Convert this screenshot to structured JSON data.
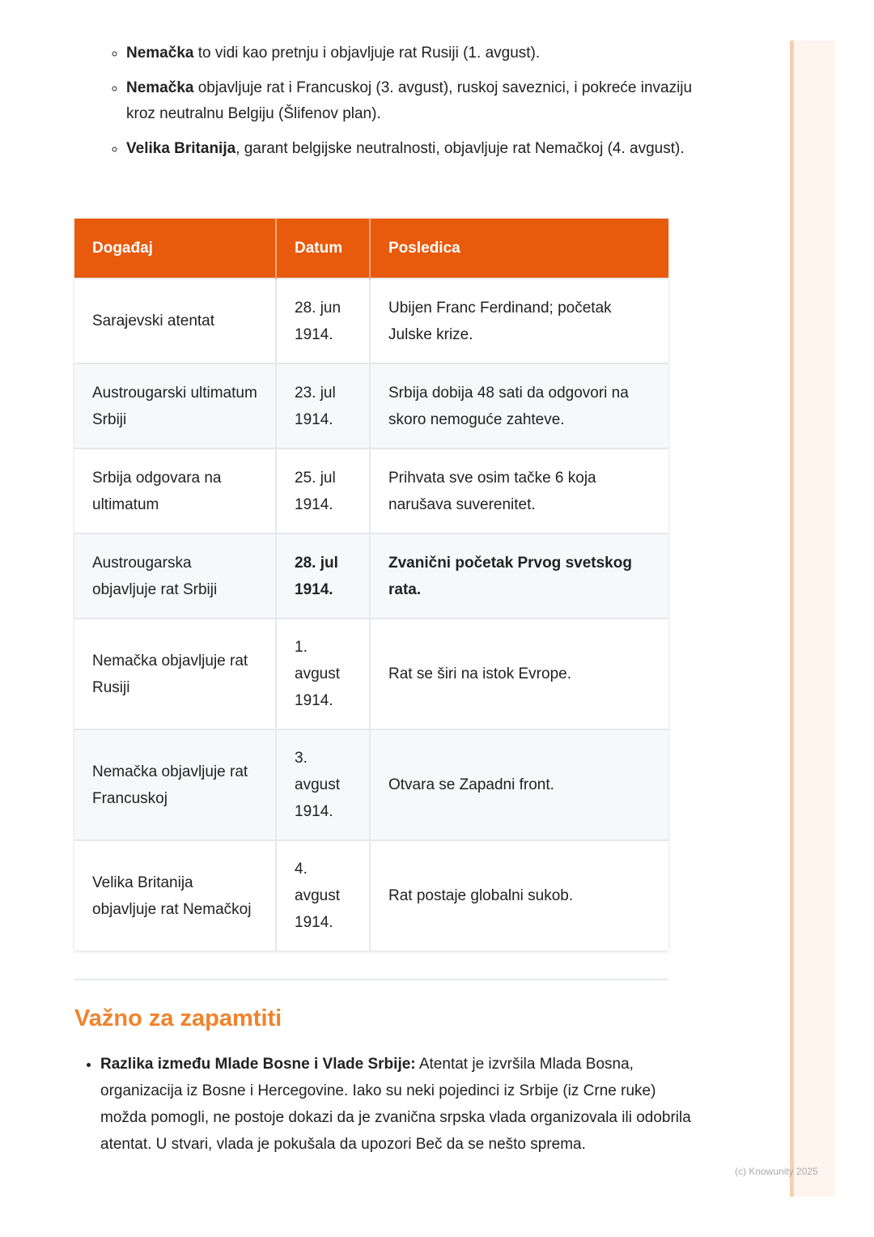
{
  "bullets": [
    {
      "bold": "Nemačka",
      "text": " to vidi kao pretnju i objavljuje rat Rusiji (1. avgust)."
    },
    {
      "bold": "Nemačka",
      "text": " objavljuje rat i Francuskoj (3. avgust), ruskoj saveznici, i pokreće invaziju kroz neutralnu Belgiju (Šlifenov plan)."
    },
    {
      "bold": "Velika Britanija",
      "text": ", garant belgijske neutralnosti, objavljuje rat Nemačkoj (4. avgust)."
    }
  ],
  "table": {
    "headers": [
      "Događaj",
      "Datum",
      "Posledica"
    ],
    "rows": [
      [
        "Sarajevski atentat",
        "28. jun 1914.",
        "Ubijen Franc Ferdinand; početak Julske krize."
      ],
      [
        "Austrougarski ultimatum Srbiji",
        "23. jul 1914.",
        "Srbija dobija 48 sati da odgovori na skoro nemoguće zahteve."
      ],
      [
        "Srbija odgovara na ultimatum",
        "25. jul 1914.",
        "Prihvata sve osim tačke 6 koja narušava suverenitet."
      ],
      [
        "Austrougarska objavljuje rat Srbiji",
        "28. jul 1914.",
        "Zvanični početak Prvog svetskog rata."
      ],
      [
        "Nemačka objavljuje rat Rusiji",
        "1. avgust 1914.",
        "Rat se širi na istok Evrope."
      ],
      [
        "Nemačka objavljuje rat Francuskoj",
        "3. avgust 1914.",
        "Otvara se Zapadni front."
      ],
      [
        "Velika Britanija objavljuje rat Nemačkoj",
        "4. avgust 1914.",
        "Rat postaje globalni sukob."
      ]
    ]
  },
  "section": {
    "title": "Važno za zapamtiti",
    "items": [
      {
        "bold": "Razlika između Mlade Bosne i Vlade Srbije:",
        "text": " Atentat je izvršila Mlada Bosna, organizacija iz Bosne i Hercegovine. Iako su neki pojedinci iz Srbije (iz Crne ruke) možda pomogli, ne postoje dokazi da je zvanična srpska vlada organizovala ili odobrila atentat. U stvari, vlada je pokušala da upozori Beč da se nešto sprema."
      }
    ]
  },
  "footer": {
    "copyright": "(c) Knowunity 2025"
  },
  "colors": {
    "header": "#e85a0c",
    "heading": "#f0832c"
  }
}
